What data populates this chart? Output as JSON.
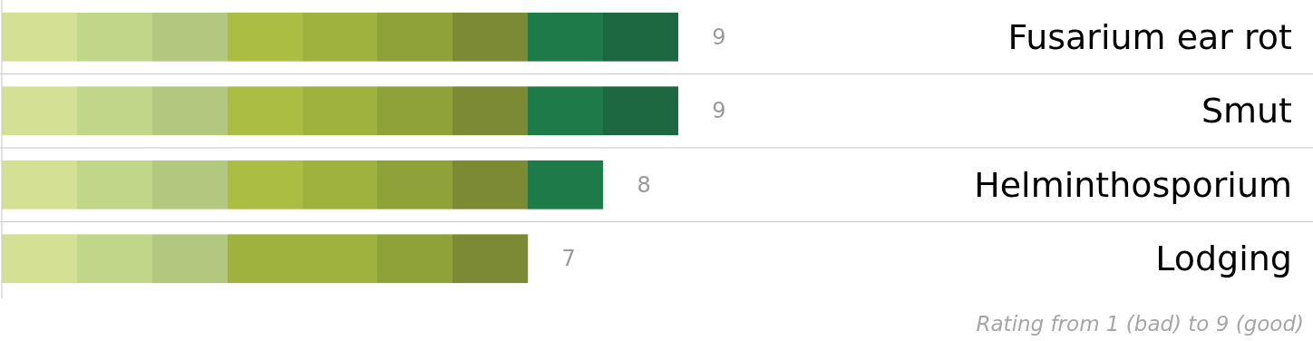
{
  "chart_data": {
    "type": "bar",
    "orientation": "horizontal",
    "categories": [
      "Fusarium ear rot",
      "Smut",
      "Helminthosporium",
      "Lodging"
    ],
    "grid": true,
    "tick_labels": "y",
    "data_labels": true,
    "series": [
      {
        "color": "#9fb23e",
        "values": [
          9,
          9,
          8,
          7
        ]
      }
    ],
    "annotations": [
      "Rating from 1 (bad) to 9 (good)"
    ]
  }
}
